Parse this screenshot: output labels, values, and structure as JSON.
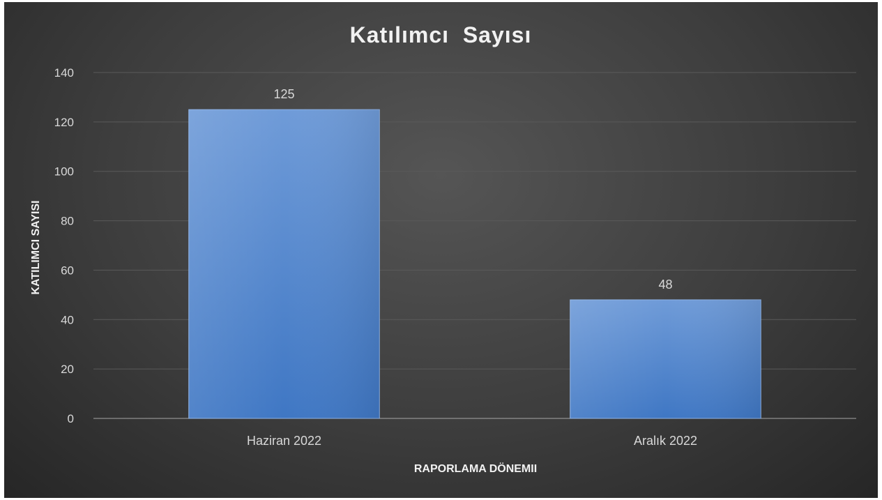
{
  "chart_data": {
    "type": "bar",
    "title": "Katılımcı  Sayısı",
    "xlabel": "RAPORLAMA DÖNEMII",
    "ylabel": "KATILIMCI SAYISI",
    "categories": [
      "Haziran 2022",
      "Aralık 2022"
    ],
    "values": [
      125,
      48
    ],
    "data_labels": [
      "125",
      "48"
    ],
    "ylim": [
      0,
      140
    ],
    "yticks": [
      0,
      20,
      40,
      60,
      80,
      100,
      120,
      140
    ],
    "grid": true,
    "legend": "none",
    "colors": {
      "bar_top": "#6f9bd8",
      "bar_bottom": "#3f77c4",
      "background": "#3d3d3d"
    }
  }
}
